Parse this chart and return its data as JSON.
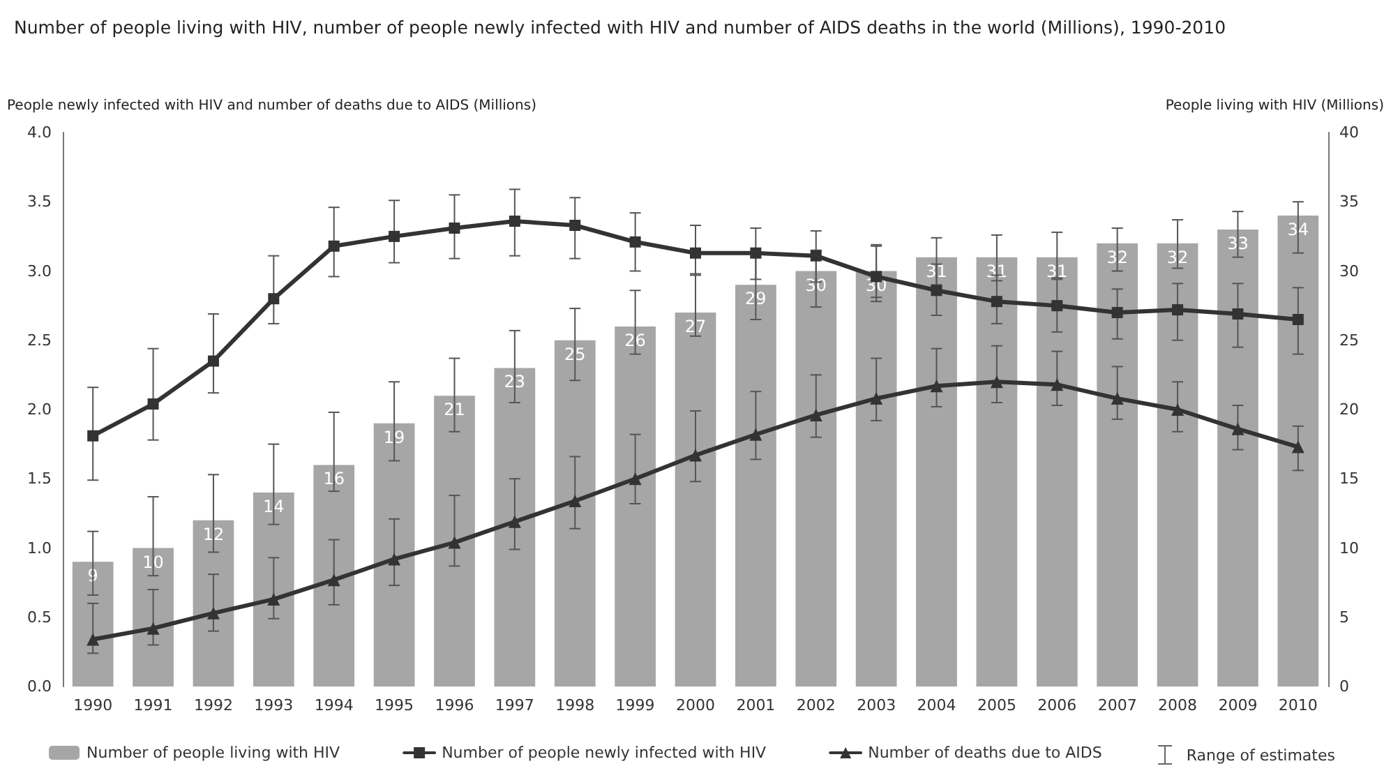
{
  "chart_data": {
    "type": "bar",
    "title": "Number of people living with HIV, number of people newly infected with HIV and number of AIDS deaths in the world (Millions), 1990-2010",
    "ylabel": "People newly infected with HIV and number of deaths due to AIDS (Millions)",
    "y2label": "People living with HIV (Millions)",
    "annotations": [
      "Range of estimates"
    ],
    "categories": [
      "1990",
      "1991",
      "1992",
      "1993",
      "1994",
      "1995",
      "1996",
      "1997",
      "1998",
      "1999",
      "2000",
      "2001",
      "2002",
      "2003",
      "2004",
      "2005",
      "2006",
      "2007",
      "2008",
      "2009",
      "2010"
    ],
    "series": [
      {
        "name": "Number of people living with HIV",
        "axis": "y2",
        "color": "#a6a6a6",
        "values": [
          9,
          10,
          12,
          14,
          16,
          19,
          21,
          23,
          25,
          26,
          27,
          29,
          30,
          30,
          31,
          31,
          31,
          32,
          32,
          33,
          34
        ],
        "value_labels": [
          "9",
          "10",
          "12",
          "14",
          "16",
          "19",
          "21",
          "23",
          "25",
          "26",
          "27",
          "29",
          "30",
          "30",
          "31",
          "31",
          "31",
          "32",
          "32",
          "33",
          "34"
        ],
        "errors": [
          [
            6.6,
            11.2
          ],
          [
            8.0,
            13.7
          ],
          [
            9.7,
            15.3
          ],
          [
            11.7,
            17.5
          ],
          [
            14.1,
            19.8
          ],
          [
            16.3,
            22.0
          ],
          [
            18.4,
            23.7
          ],
          [
            20.5,
            25.7
          ],
          [
            22.1,
            27.3
          ],
          [
            24.0,
            28.6
          ],
          [
            25.3,
            29.8
          ],
          [
            26.5,
            31.0
          ],
          [
            27.4,
            31.5
          ],
          [
            28.1,
            31.9
          ],
          [
            29.0,
            32.4
          ],
          [
            29.3,
            32.6
          ],
          [
            29.5,
            32.8
          ],
          [
            30.0,
            33.1
          ],
          [
            30.2,
            33.7
          ],
          [
            31.0,
            34.3
          ],
          [
            31.3,
            35.0
          ]
        ]
      },
      {
        "name": "Number of people newly infected with HIV",
        "type": "line",
        "marker": "square",
        "color": "#333333",
        "values": [
          1.81,
          2.04,
          2.35,
          2.8,
          3.18,
          3.25,
          3.31,
          3.36,
          3.33,
          3.21,
          3.13,
          3.13,
          3.11,
          2.96,
          2.86,
          2.78,
          2.75,
          2.7,
          2.72,
          2.69,
          2.65
        ],
        "errors": [
          [
            1.49,
            2.16
          ],
          [
            1.78,
            2.44
          ],
          [
            2.12,
            2.69
          ],
          [
            2.62,
            3.11
          ],
          [
            2.96,
            3.46
          ],
          [
            3.06,
            3.51
          ],
          [
            3.09,
            3.55
          ],
          [
            3.11,
            3.59
          ],
          [
            3.09,
            3.53
          ],
          [
            3.0,
            3.42
          ],
          [
            2.97,
            3.33
          ],
          [
            2.94,
            3.31
          ],
          [
            2.92,
            3.29
          ],
          [
            2.78,
            3.18
          ],
          [
            2.68,
            3.05
          ],
          [
            2.62,
            2.97
          ],
          [
            2.56,
            2.94
          ],
          [
            2.51,
            2.87
          ],
          [
            2.5,
            2.91
          ],
          [
            2.45,
            2.91
          ],
          [
            2.4,
            2.88
          ]
        ]
      },
      {
        "name": "Number of deaths due to AIDS",
        "type": "line",
        "marker": "triangle",
        "color": "#333333",
        "values": [
          0.34,
          0.42,
          0.53,
          0.63,
          0.77,
          0.92,
          1.04,
          1.19,
          1.34,
          1.5,
          1.67,
          1.82,
          1.96,
          2.08,
          2.17,
          2.2,
          2.18,
          2.08,
          2.0,
          1.86,
          1.73
        ],
        "errors": [
          [
            0.24,
            0.6
          ],
          [
            0.3,
            0.7
          ],
          [
            0.4,
            0.81
          ],
          [
            0.49,
            0.93
          ],
          [
            0.59,
            1.06
          ],
          [
            0.73,
            1.21
          ],
          [
            0.87,
            1.38
          ],
          [
            0.99,
            1.5
          ],
          [
            1.14,
            1.66
          ],
          [
            1.32,
            1.82
          ],
          [
            1.48,
            1.99
          ],
          [
            1.64,
            2.13
          ],
          [
            1.8,
            2.25
          ],
          [
            1.92,
            2.37
          ],
          [
            2.02,
            2.44
          ],
          [
            2.05,
            2.46
          ],
          [
            2.03,
            2.42
          ],
          [
            1.93,
            2.31
          ],
          [
            1.84,
            2.2
          ],
          [
            1.71,
            2.03
          ],
          [
            1.56,
            1.88
          ]
        ]
      }
    ],
    "ylim": [
      0,
      4
    ],
    "yticks": [
      {
        "value": 0,
        "label": "0.0"
      },
      0.5,
      {
        "value": 1,
        "label": "1.0"
      },
      1.5,
      {
        "value": 2,
        "label": "2.0"
      },
      2.5,
      {
        "value": 3,
        "label": "3.0"
      },
      3.5,
      {
        "value": 4,
        "label": "4.0"
      }
    ],
    "y2lim": [
      0,
      40
    ],
    "y2ticks": [
      0,
      5,
      10,
      15,
      20,
      25,
      30,
      35,
      40
    ],
    "grid": false,
    "legend": "bottom"
  }
}
